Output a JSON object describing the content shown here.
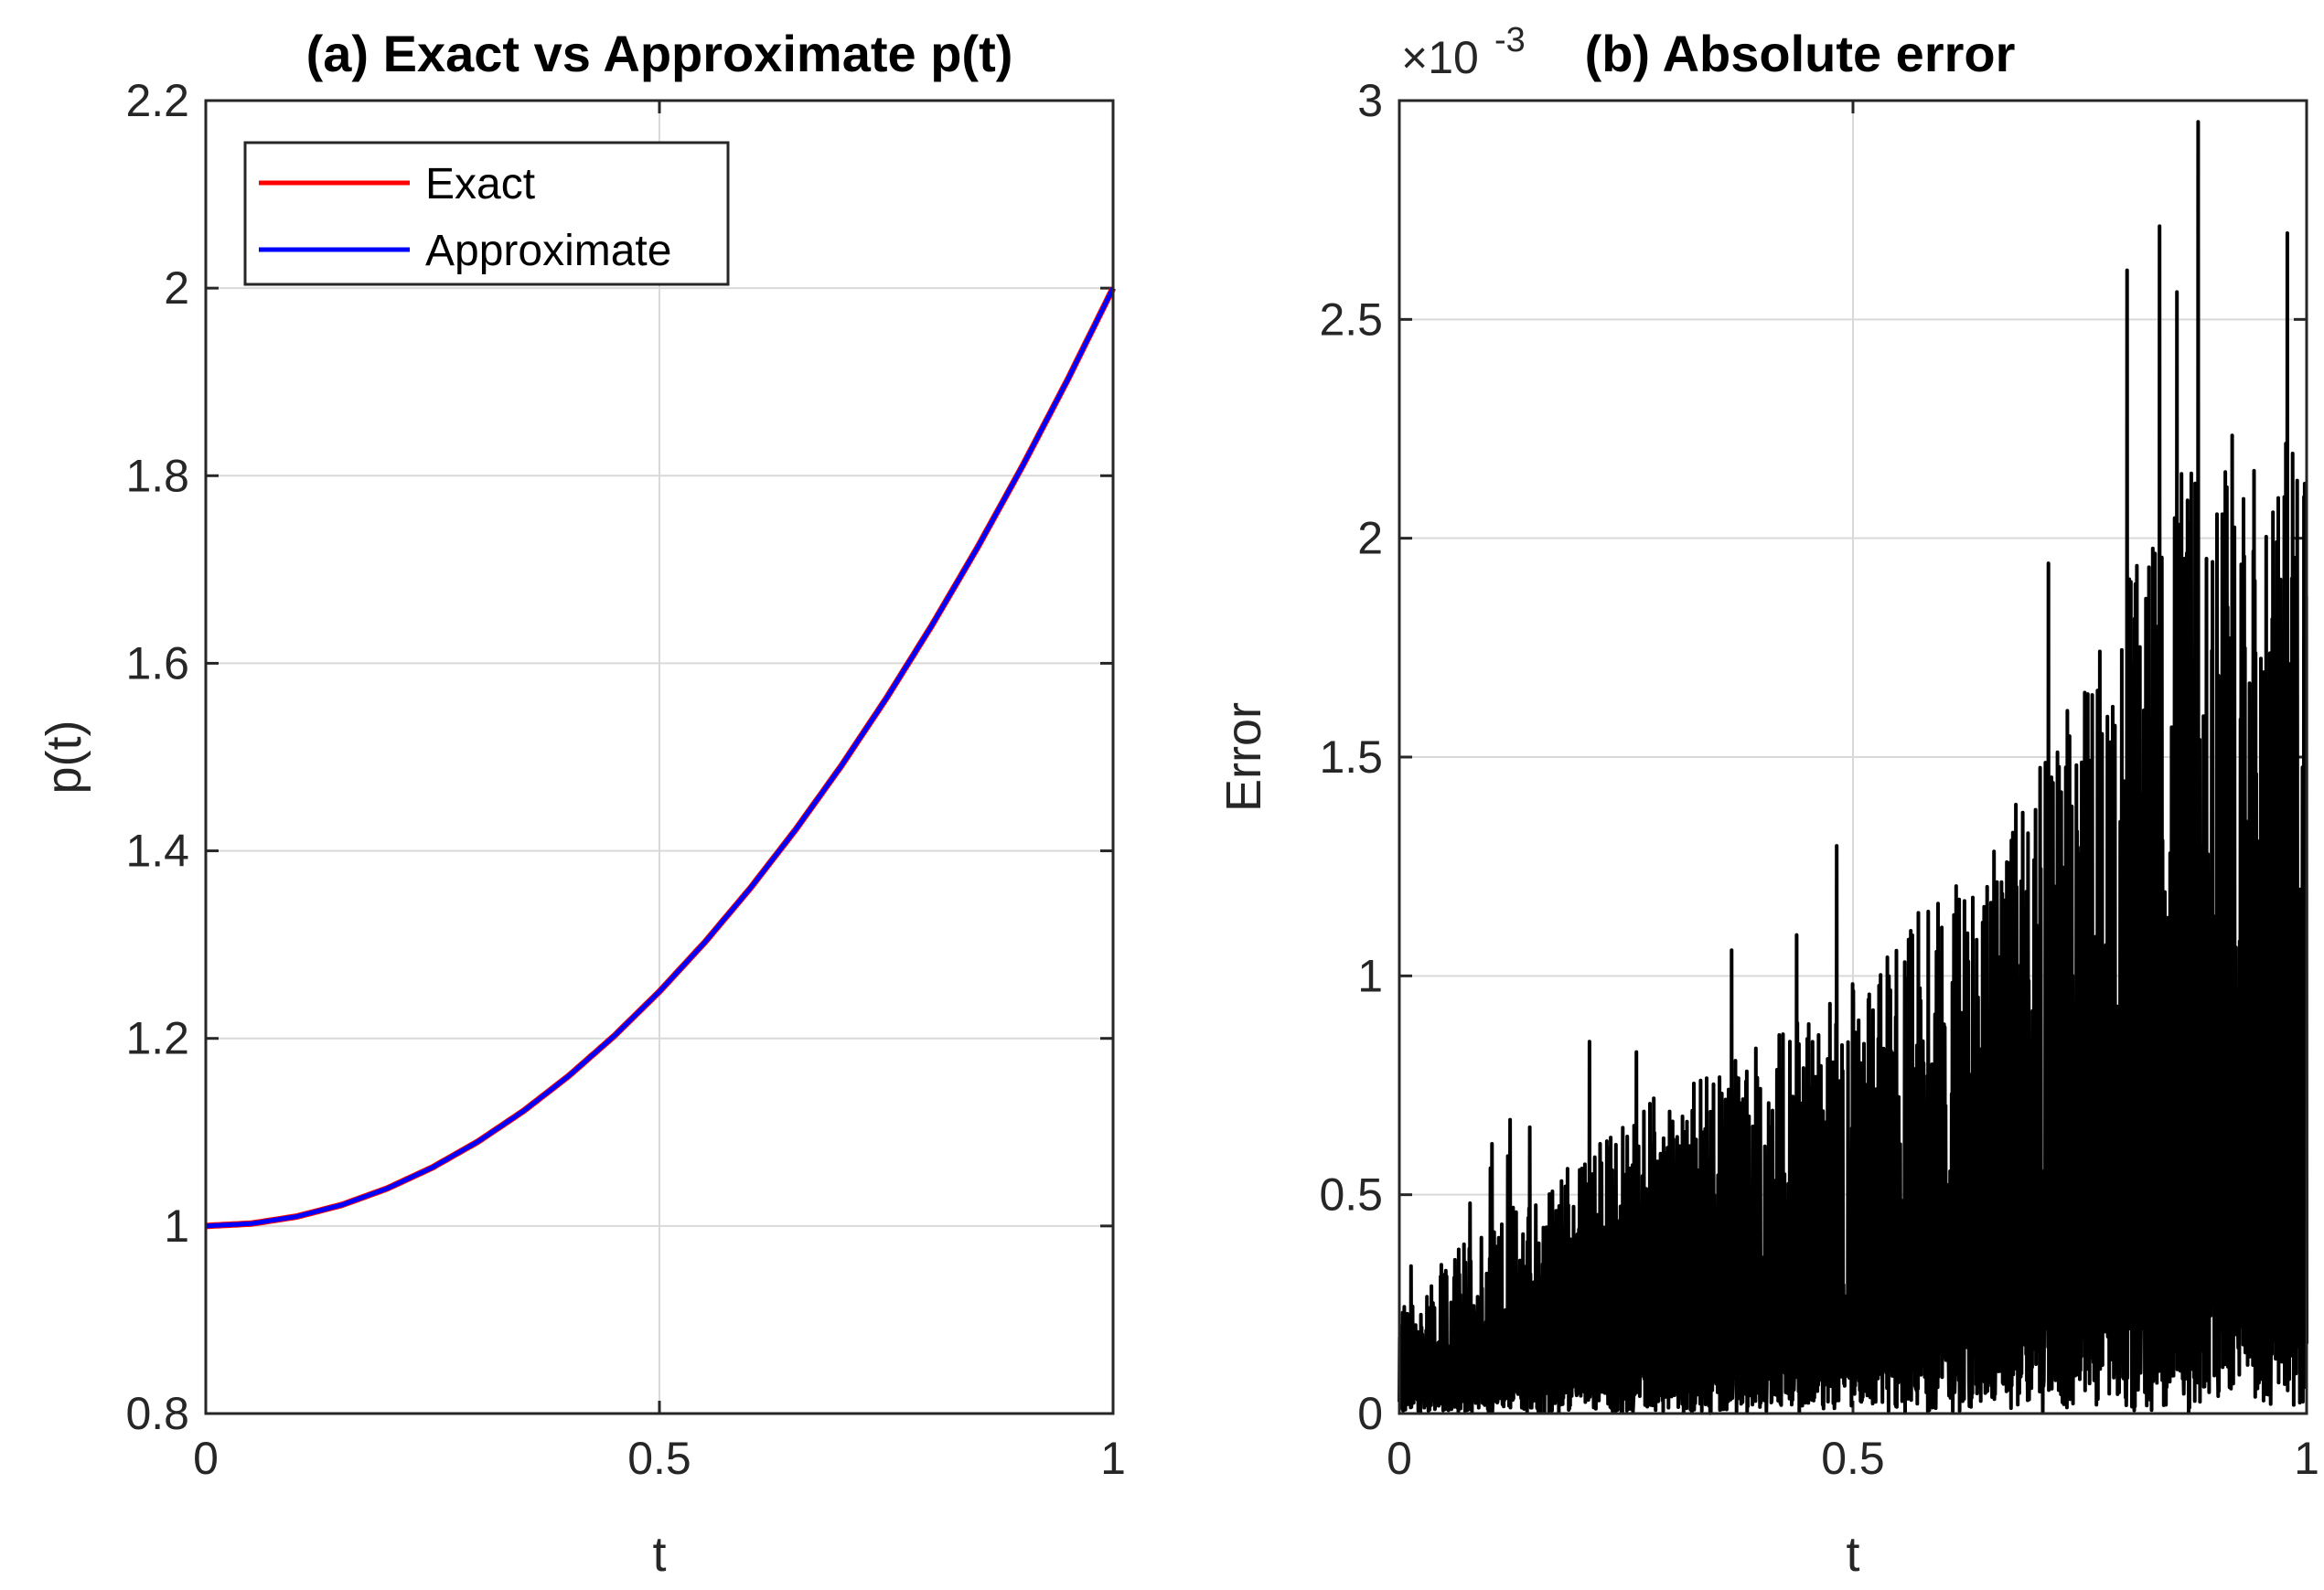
{
  "chart_data": [
    {
      "type": "line",
      "title": "(a) Exact vs Approximate p(t)",
      "xlabel": "t",
      "ylabel": "p(t)",
      "xlim": [
        0,
        1
      ],
      "ylim": [
        0.8,
        2.2
      ],
      "xticks": [
        "0",
        "0.5",
        "1"
      ],
      "yticks": [
        "0.8",
        "1",
        "1.2",
        "1.4",
        "1.6",
        "1.8",
        "2",
        "2.2"
      ],
      "grid": true,
      "legend_position": "top-left",
      "x": [
        0,
        0.05,
        0.1,
        0.15,
        0.2,
        0.25,
        0.3,
        0.35,
        0.4,
        0.45,
        0.5,
        0.55,
        0.6,
        0.65,
        0.7,
        0.75,
        0.8,
        0.85,
        0.9,
        0.95,
        1.0
      ],
      "series": [
        {
          "name": "Exact",
          "color": "#ff0000",
          "values": [
            1.0,
            1.0025,
            1.01,
            1.0225,
            1.04,
            1.0625,
            1.09,
            1.1225,
            1.16,
            1.2025,
            1.25,
            1.3025,
            1.36,
            1.4225,
            1.49,
            1.5625,
            1.64,
            1.7225,
            1.81,
            1.9025,
            2.0
          ]
        },
        {
          "name": "Approximate",
          "color": "#0000ff",
          "values": [
            1.0,
            1.0025,
            1.01,
            1.0225,
            1.04,
            1.0625,
            1.09,
            1.1225,
            1.16,
            1.2025,
            1.25,
            1.3025,
            1.36,
            1.4225,
            1.49,
            1.5625,
            1.64,
            1.7225,
            1.81,
            1.9025,
            2.0
          ]
        }
      ]
    },
    {
      "type": "line",
      "title": "(b) Absolute error",
      "xlabel": "t",
      "ylabel": "Error",
      "axis_exponent_label": "×10",
      "axis_exponent_power": "-3",
      "xlim": [
        0,
        1
      ],
      "ylim": [
        0,
        3
      ],
      "xticks": [
        "0",
        "0.5",
        "1"
      ],
      "yticks": [
        "0",
        "0.5",
        "1",
        "1.5",
        "2",
        "2.5",
        "3"
      ],
      "grid": true,
      "series": [
        {
          "color": "#000000",
          "description_of_trend": "dense noisy oscillation between 0 and an envelope growing with t",
          "envelope_x": [
            0,
            0.1,
            0.2,
            0.3,
            0.4,
            0.5,
            0.6,
            0.7,
            0.8,
            0.9,
            1.0
          ],
          "envelope_values": [
            0.25,
            0.45,
            0.6,
            0.75,
            0.85,
            1.0,
            1.2,
            1.45,
            1.9,
            2.3,
            2.2
          ]
        }
      ]
    }
  ]
}
